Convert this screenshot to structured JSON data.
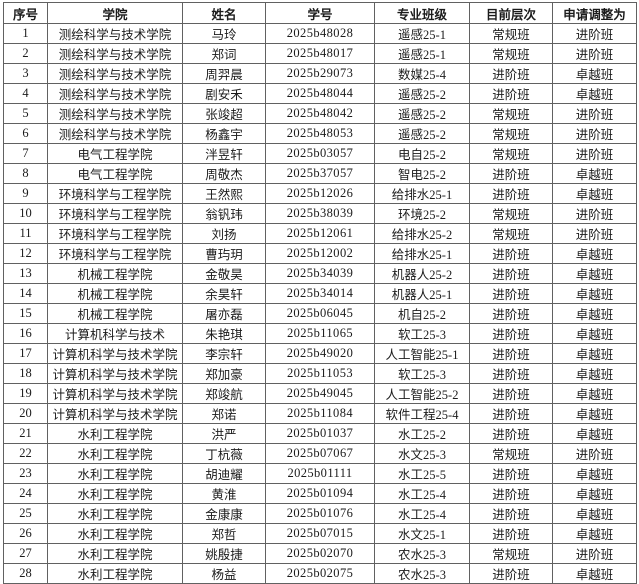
{
  "table": {
    "headers": [
      "序号",
      "学院",
      "姓名",
      "学号",
      "专业班级",
      "目前层次",
      "申请调整为"
    ],
    "rows": [
      [
        "1",
        "测绘科学与技术学院",
        "马玲",
        "2025b48028",
        "遥感25-1",
        "常规班",
        "进阶班"
      ],
      [
        "2",
        "测绘科学与技术学院",
        "郑词",
        "2025b48017",
        "遥感25-1",
        "常规班",
        "进阶班"
      ],
      [
        "3",
        "测绘科学与技术学院",
        "周羿晨",
        "2025b29073",
        "数媒25-4",
        "进阶班",
        "卓越班"
      ],
      [
        "4",
        "测绘科学与技术学院",
        "剧安禾",
        "2025b48044",
        "遥感25-2",
        "进阶班",
        "卓越班"
      ],
      [
        "5",
        "测绘科学与技术学院",
        "张竣超",
        "2025b48042",
        "遥感25-2",
        "常规班",
        "进阶班"
      ],
      [
        "6",
        "测绘科学与技术学院",
        "杨鑫宇",
        "2025b48053",
        "遥感25-2",
        "常规班",
        "进阶班"
      ],
      [
        "7",
        "电气工程学院",
        "泮昱轩",
        "2025b03057",
        "电自25-2",
        "常规班",
        "进阶班"
      ],
      [
        "8",
        "电气工程学院",
        "周敬杰",
        "2025b37057",
        "智电25-2",
        "进阶班",
        "卓越班"
      ],
      [
        "9",
        "环境科学与工程学院",
        "王然熙",
        "2025b12026",
        "给排水25-1",
        "进阶班",
        "卓越班"
      ],
      [
        "10",
        "环境科学与工程学院",
        "翁钒玮",
        "2025b38039",
        "环境25-2",
        "常规班",
        "进阶班"
      ],
      [
        "11",
        "环境科学与工程学院",
        "刘扬",
        "2025b12061",
        "给排水25-2",
        "常规班",
        "进阶班"
      ],
      [
        "12",
        "环境科学与工程学院",
        "曹玙玥",
        "2025b12002",
        "给排水25-1",
        "进阶班",
        "卓越班"
      ],
      [
        "13",
        "机械工程学院",
        "金敬昊",
        "2025b34039",
        "机器人25-2",
        "进阶班",
        "卓越班"
      ],
      [
        "14",
        "机械工程学院",
        "余昊轩",
        "2025b34014",
        "机器人25-1",
        "进阶班",
        "卓越班"
      ],
      [
        "15",
        "机械工程学院",
        "屠亦磊",
        "2025b06045",
        "机自25-2",
        "进阶班",
        "卓越班"
      ],
      [
        "16",
        "计算机科学与技术",
        "朱艳琪",
        "2025b11065",
        "软工25-3",
        "进阶班",
        "卓越班"
      ],
      [
        "17",
        "计算机科学与技术学院",
        "李宗轩",
        "2025b49020",
        "人工智能25-1",
        "进阶班",
        "卓越班"
      ],
      [
        "18",
        "计算机科学与技术学院",
        "郑加豪",
        "2025b11053",
        "软工25-3",
        "进阶班",
        "卓越班"
      ],
      [
        "19",
        "计算机科学与技术学院",
        "郑竣航",
        "2025b49045",
        "人工智能25-2",
        "进阶班",
        "卓越班"
      ],
      [
        "20",
        "计算机科学与技术学院",
        "郑诺",
        "2025b11084",
        "软件工程25-4",
        "进阶班",
        "卓越班"
      ],
      [
        "21",
        "水利工程学院",
        "洪严",
        "2025b01037",
        "水工25-2",
        "进阶班",
        "卓越班"
      ],
      [
        "22",
        "水利工程学院",
        "丁杭薇",
        "2025b07067",
        "水文25-3",
        "常规班",
        "进阶班"
      ],
      [
        "23",
        "水利工程学院",
        "胡迪耀",
        "2025b01111",
        "水工25-5",
        "进阶班",
        "卓越班"
      ],
      [
        "24",
        "水利工程学院",
        "黄淮",
        "2025b01094",
        "水工25-4",
        "进阶班",
        "卓越班"
      ],
      [
        "25",
        "水利工程学院",
        "金康康",
        "2025b01076",
        "水工25-4",
        "进阶班",
        "卓越班"
      ],
      [
        "26",
        "水利工程学院",
        "郑哲",
        "2025b07015",
        "水文25-1",
        "进阶班",
        "卓越班"
      ],
      [
        "27",
        "水利工程学院",
        "姚殷捷",
        "2025b02070",
        "农水25-3",
        "常规班",
        "进阶班"
      ],
      [
        "28",
        "水利工程学院",
        "杨益",
        "2025b02075",
        "农水25-3",
        "进阶班",
        "卓越班"
      ]
    ]
  }
}
